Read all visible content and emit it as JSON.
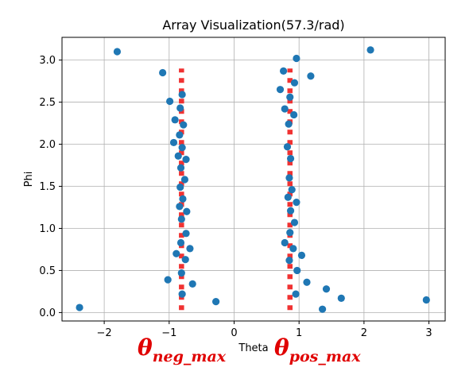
{
  "chart_data": {
    "type": "scatter",
    "title": "Array Visualization(57.3/rad)",
    "xlabel": "Theta",
    "ylabel": "Phi",
    "xlim": [
      -2.65,
      3.25
    ],
    "ylim": [
      -0.1,
      3.27
    ],
    "xticks": [
      -2,
      -1,
      0,
      1,
      2,
      3
    ],
    "yticks": [
      0.0,
      0.5,
      1.0,
      1.5,
      2.0,
      2.5,
      3.0
    ],
    "xtick_labels": [
      "−2",
      "−1",
      "0",
      "1",
      "2",
      "3"
    ],
    "ytick_labels": [
      "0.0",
      "0.5",
      "1.0",
      "1.5",
      "2.0",
      "2.5",
      "3.0"
    ],
    "grid": true,
    "point_color": "#1f77b4",
    "line_color": "#f03232",
    "series": [
      {
        "points": [
          {
            "x": -2.38,
            "y": 0.06
          },
          {
            "x": -1.8,
            "y": 3.1
          },
          {
            "x": -1.1,
            "y": 2.85
          },
          {
            "x": -0.99,
            "y": 2.51
          },
          {
            "x": -0.8,
            "y": 2.59
          },
          {
            "x": -0.83,
            "y": 2.43
          },
          {
            "x": -0.91,
            "y": 2.29
          },
          {
            "x": -0.78,
            "y": 2.23
          },
          {
            "x": -0.84,
            "y": 2.11
          },
          {
            "x": -0.93,
            "y": 2.02
          },
          {
            "x": -0.8,
            "y": 1.96
          },
          {
            "x": -0.86,
            "y": 1.86
          },
          {
            "x": -0.74,
            "y": 1.82
          },
          {
            "x": -0.82,
            "y": 1.72
          },
          {
            "x": -0.76,
            "y": 1.58
          },
          {
            "x": -0.83,
            "y": 1.49
          },
          {
            "x": -0.79,
            "y": 1.35
          },
          {
            "x": -0.84,
            "y": 1.26
          },
          {
            "x": -0.73,
            "y": 1.2
          },
          {
            "x": -0.81,
            "y": 1.11
          },
          {
            "x": -0.74,
            "y": 0.94
          },
          {
            "x": -0.82,
            "y": 0.83
          },
          {
            "x": -0.68,
            "y": 0.76
          },
          {
            "x": -0.89,
            "y": 0.7
          },
          {
            "x": -0.75,
            "y": 0.63
          },
          {
            "x": -0.81,
            "y": 0.47
          },
          {
            "x": -1.02,
            "y": 0.39
          },
          {
            "x": -0.64,
            "y": 0.34
          },
          {
            "x": -0.8,
            "y": 0.22
          },
          {
            "x": -0.28,
            "y": 0.13
          },
          {
            "x": 0.96,
            "y": 3.02
          },
          {
            "x": 2.1,
            "y": 3.12
          },
          {
            "x": 0.76,
            "y": 2.87
          },
          {
            "x": 1.18,
            "y": 2.81
          },
          {
            "x": 0.93,
            "y": 2.73
          },
          {
            "x": 0.71,
            "y": 2.65
          },
          {
            "x": 0.86,
            "y": 2.56
          },
          {
            "x": 0.78,
            "y": 2.42
          },
          {
            "x": 0.92,
            "y": 2.35
          },
          {
            "x": 0.84,
            "y": 2.24
          },
          {
            "x": 0.82,
            "y": 1.97
          },
          {
            "x": 0.87,
            "y": 1.83
          },
          {
            "x": 0.85,
            "y": 1.6
          },
          {
            "x": 0.89,
            "y": 1.46
          },
          {
            "x": 0.83,
            "y": 1.37
          },
          {
            "x": 0.96,
            "y": 1.31
          },
          {
            "x": 0.87,
            "y": 1.21
          },
          {
            "x": 0.93,
            "y": 1.07
          },
          {
            "x": 0.86,
            "y": 0.95
          },
          {
            "x": 0.78,
            "y": 0.83
          },
          {
            "x": 0.91,
            "y": 0.76
          },
          {
            "x": 1.04,
            "y": 0.68
          },
          {
            "x": 0.85,
            "y": 0.62
          },
          {
            "x": 0.97,
            "y": 0.5
          },
          {
            "x": 1.12,
            "y": 0.36
          },
          {
            "x": 1.42,
            "y": 0.28
          },
          {
            "x": 0.95,
            "y": 0.22
          },
          {
            "x": 1.65,
            "y": 0.17
          },
          {
            "x": 2.96,
            "y": 0.15
          },
          {
            "x": 1.36,
            "y": 0.04
          }
        ]
      }
    ],
    "vertical_lines": [
      {
        "x": -0.81,
        "y_from": 0.03,
        "y_to": 2.9
      },
      {
        "x": 0.86,
        "y_from": 0.03,
        "y_to": 2.9
      }
    ],
    "annotations": [
      {
        "main": "θ",
        "sub": "neg_max"
      },
      {
        "main": "θ",
        "sub": "pos_max"
      }
    ]
  }
}
